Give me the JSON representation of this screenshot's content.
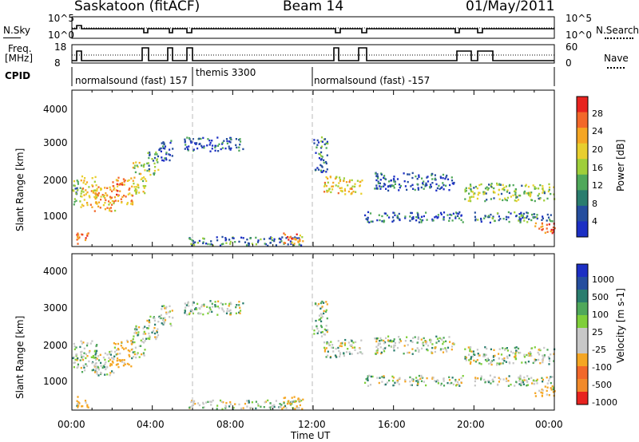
{
  "header": {
    "station": "Saskatoon (fitACF)",
    "beam": "Beam 14",
    "date": "01/May/2011"
  },
  "top_panels": {
    "nsky_label": "N.Sky",
    "nsky_ticks": [
      "10^5",
      "10^0"
    ],
    "nsearch_label": "N.Search",
    "nsearch_ticks": [
      "10^5",
      "10^0"
    ],
    "freq_label": "Freq.",
    "freq_unit": "[MHz]",
    "freq_ticks": [
      "18",
      "8"
    ],
    "nave_label": "Nave",
    "nave_ticks": [
      "60",
      "0"
    ],
    "cpid_label": "CPID",
    "cpid_segments": [
      {
        "name": "normalsound (fast) 157",
        "start_h": 0,
        "end_h": 6
      },
      {
        "name": "themis 3300",
        "start_h": 6,
        "end_h": 12
      },
      {
        "name": "normalsound (fast) -157",
        "start_h": 12,
        "end_h": 24
      }
    ]
  },
  "x_axis": {
    "label": "Time UT",
    "ticks": [
      "00:00",
      "04:00",
      "08:00",
      "12:00",
      "16:00",
      "20:00",
      "00:00"
    ]
  },
  "y_axis": {
    "label": "Slant Range [km]",
    "ticks": [
      "1000",
      "2000",
      "3000",
      "4000"
    ]
  },
  "power_colorbar": {
    "label": "Power [dB]",
    "ticks": [
      "28",
      "24",
      "20",
      "16",
      "12",
      "8",
      "4"
    ],
    "colors": [
      "#e8231f",
      "#f2682a",
      "#f5a623",
      "#e8cf2e",
      "#9fcf3a",
      "#4fa85a",
      "#2a7d6e",
      "#254e9e",
      "#1c2fc4"
    ]
  },
  "velocity_colorbar": {
    "label": "Velocity [m s-1]",
    "ticks": [
      "1000",
      "500",
      "100",
      "25",
      "-25",
      "-100",
      "-500",
      "-1000"
    ],
    "colors": [
      "#1c2fc4",
      "#254e9e",
      "#2a7d6e",
      "#4fa85a",
      "#7fcf3a",
      "#c8c8c8",
      "#c8c8c8",
      "#f5a623",
      "#f2682a",
      "#f28a2a",
      "#e8231f"
    ]
  },
  "chart_data": {
    "type": "heatmap",
    "title": "Saskatoon (fitACF)",
    "xlabel": "Time UT",
    "ylabel": "Slant Range [km]",
    "xlim": [
      "00:00",
      "24:00"
    ],
    "ylim": [
      200,
      4600
    ],
    "scatter_bands_power": [
      {
        "t0": 0.0,
        "t1": 0.4,
        "r0": 1400,
        "r1": 2100,
        "db": 12
      },
      {
        "t0": 0.2,
        "t1": 0.8,
        "r0": 300,
        "r1": 600,
        "db": 24
      },
      {
        "t0": 0.4,
        "t1": 1.2,
        "r0": 1300,
        "r1": 2200,
        "db": 18
      },
      {
        "t0": 1.0,
        "t1": 2.2,
        "r0": 1200,
        "r1": 1900,
        "db": 20
      },
      {
        "t0": 2.0,
        "t1": 3.0,
        "r0": 1400,
        "r1": 2200,
        "db": 22
      },
      {
        "t0": 3.0,
        "t1": 3.7,
        "r0": 1700,
        "r1": 2600,
        "db": 16
      },
      {
        "t0": 3.7,
        "t1": 4.3,
        "r0": 2200,
        "r1": 2900,
        "db": 12
      },
      {
        "t0": 4.3,
        "t1": 5.0,
        "r0": 2600,
        "r1": 3200,
        "db": 8
      },
      {
        "t0": 5.5,
        "t1": 8.5,
        "r0": 2900,
        "r1": 3300,
        "db": 8
      },
      {
        "t0": 5.8,
        "t1": 11.5,
        "r0": 250,
        "r1": 500,
        "db": 10
      },
      {
        "t0": 10.5,
        "t1": 11.5,
        "r0": 300,
        "r1": 600,
        "db": 22
      },
      {
        "t0": 12.0,
        "t1": 12.7,
        "r0": 2300,
        "r1": 3300,
        "db": 10
      },
      {
        "t0": 12.5,
        "t1": 14.5,
        "r0": 1700,
        "r1": 2200,
        "db": 18
      },
      {
        "t0": 14.5,
        "t1": 19.5,
        "r0": 900,
        "r1": 1200,
        "db": 8
      },
      {
        "t0": 15.0,
        "t1": 19.0,
        "r0": 1800,
        "r1": 2300,
        "db": 8
      },
      {
        "t0": 19.5,
        "t1": 24.0,
        "r0": 1500,
        "r1": 2000,
        "db": 14
      },
      {
        "t0": 20.0,
        "t1": 24.0,
        "r0": 900,
        "r1": 1200,
        "db": 10
      },
      {
        "t0": 23.0,
        "t1": 24.0,
        "r0": 600,
        "r1": 900,
        "db": 24
      }
    ]
  }
}
